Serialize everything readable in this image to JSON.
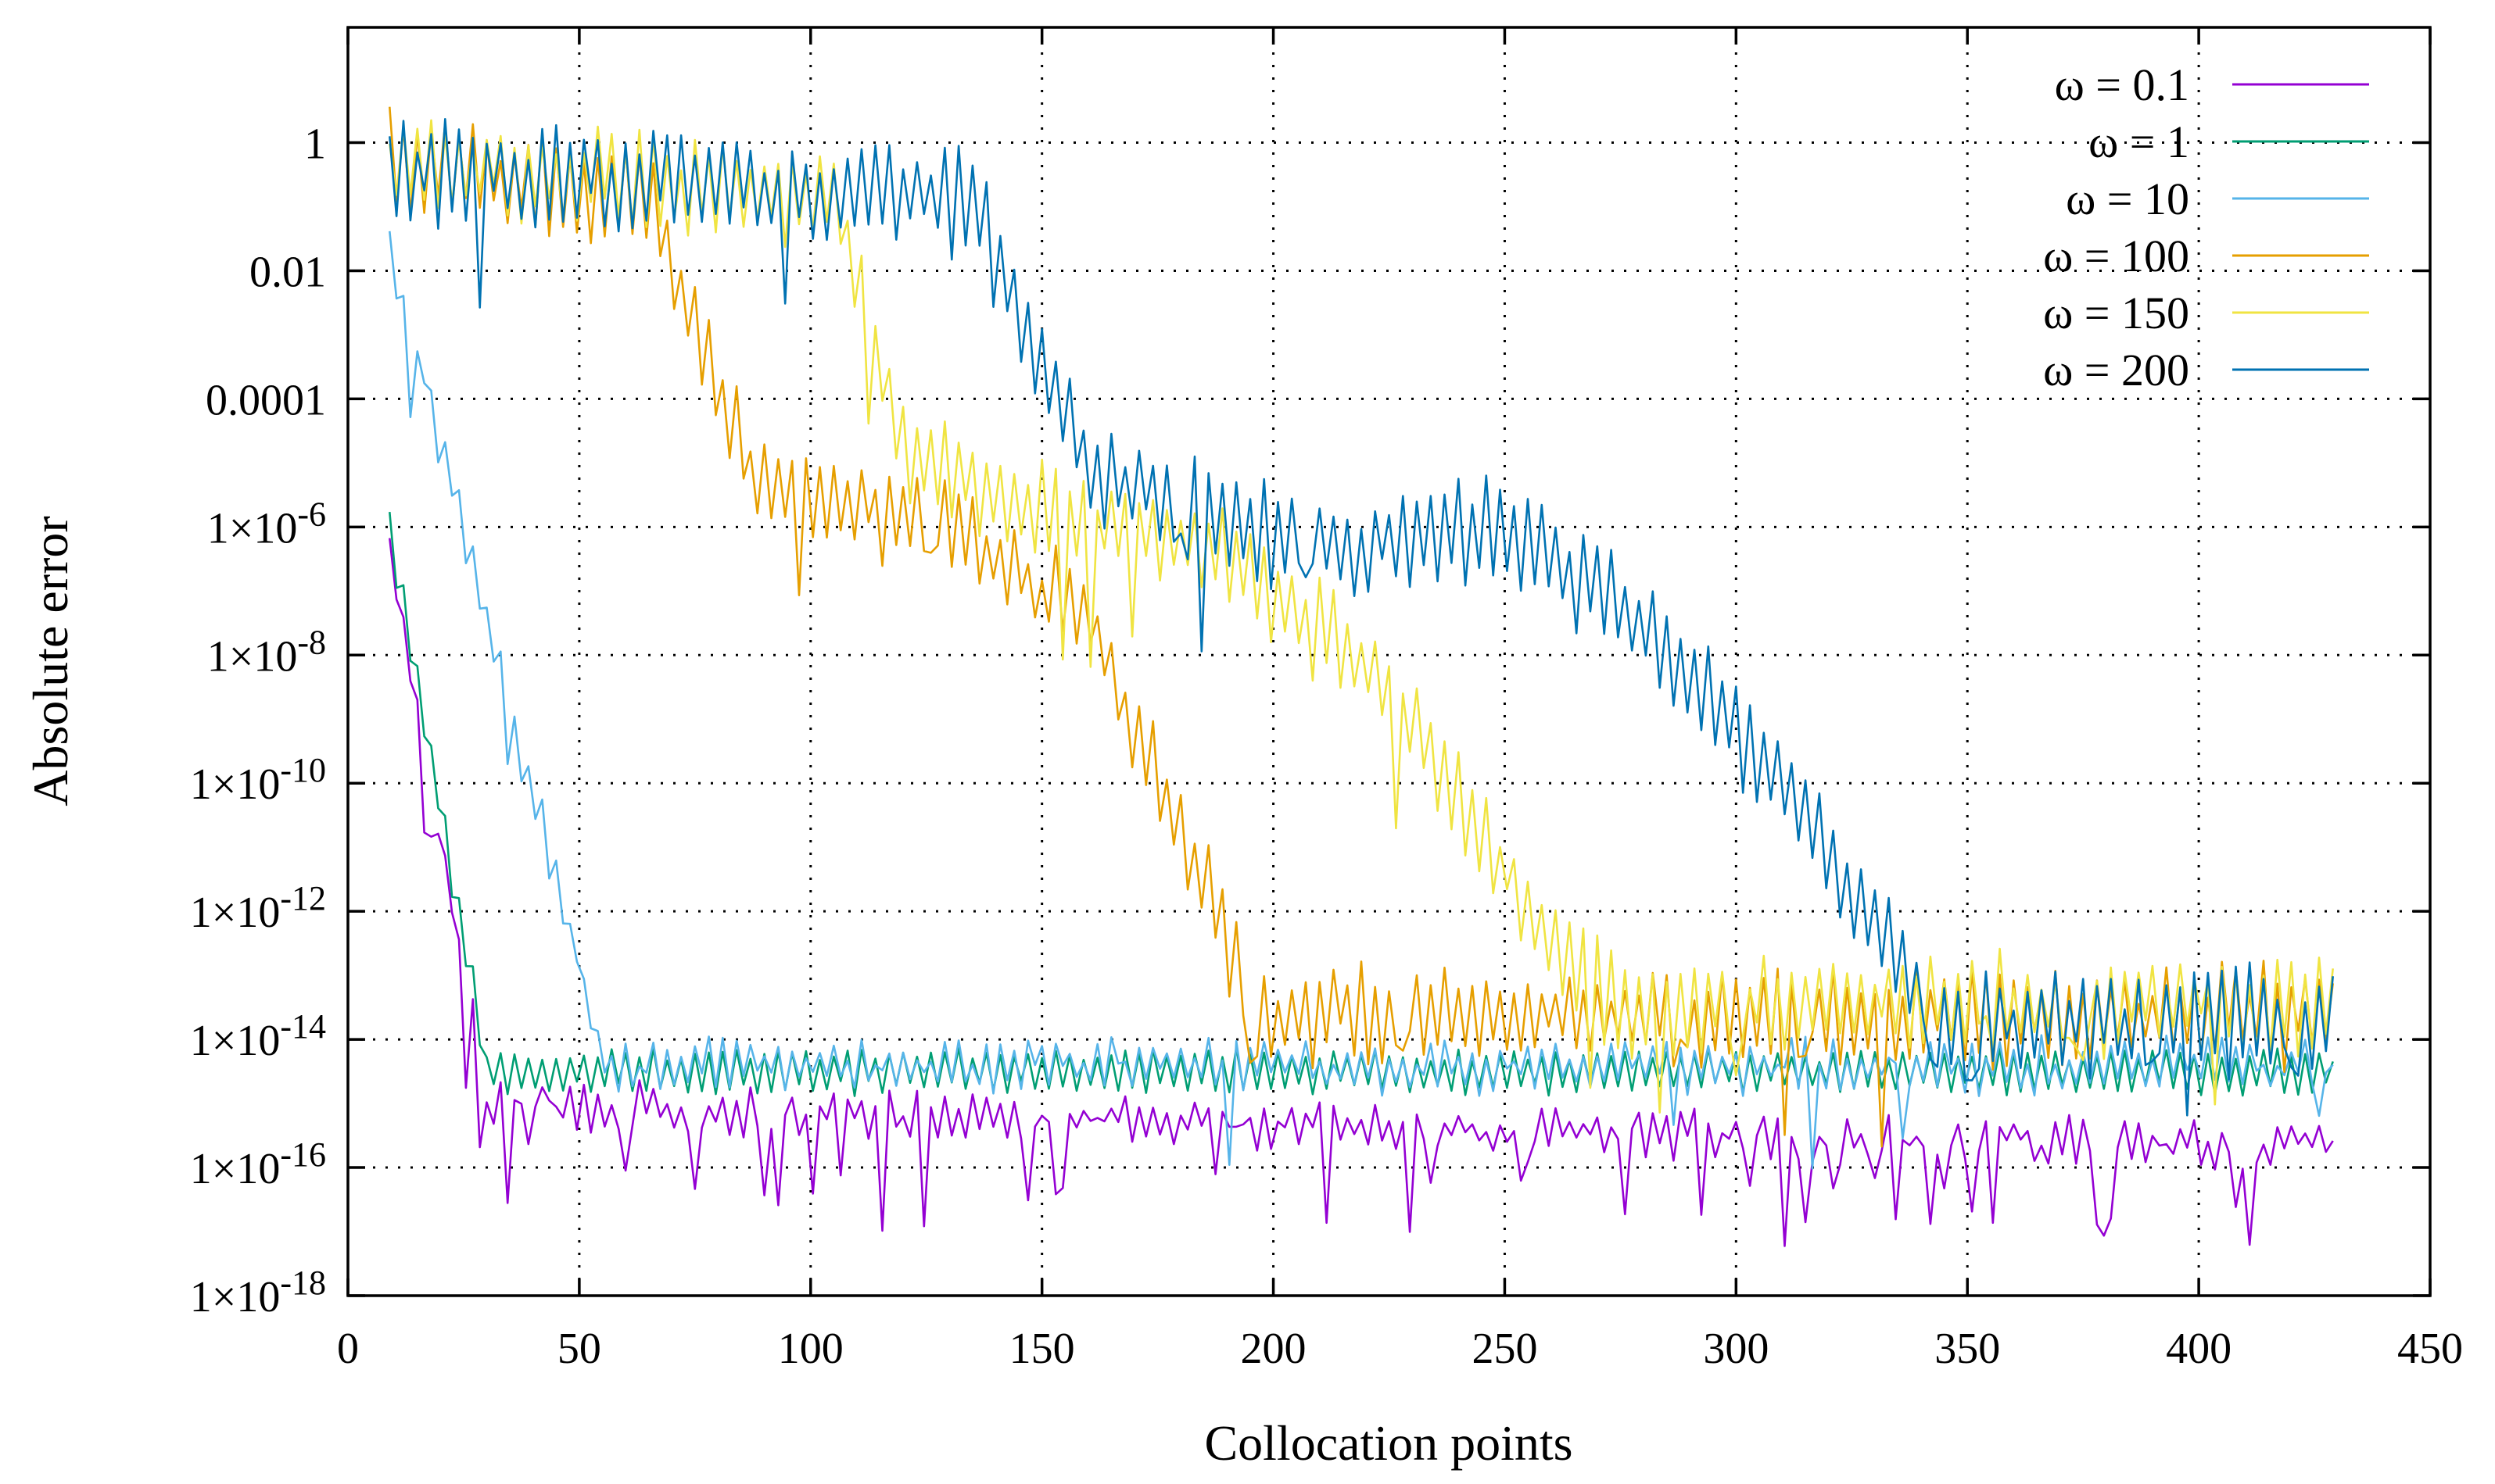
{
  "chart_data": {
    "type": "line",
    "title": "",
    "xlabel": "Collocation points",
    "ylabel": "Absolute error",
    "xlim": [
      0,
      450
    ],
    "ylim_log10": [
      -18,
      1.8
    ],
    "yscale": "log",
    "grid": true,
    "legend_position": "top-right",
    "x_ticks": [
      0,
      50,
      100,
      150,
      200,
      250,
      300,
      350,
      400,
      450
    ],
    "x_tick_labels": [
      "0",
      "50",
      "100",
      "150",
      "200",
      "250",
      "300",
      "350",
      "400",
      "450"
    ],
    "y_ticks": [
      {
        "log10": 0,
        "mant": "1",
        "exp": ""
      },
      {
        "log10": -2,
        "mant": "0.01",
        "exp": ""
      },
      {
        "log10": -4,
        "mant": "0.0001",
        "exp": ""
      },
      {
        "log10": -6,
        "mant": "1×10",
        "exp": "-6"
      },
      {
        "log10": -8,
        "mant": "1×10",
        "exp": "-8"
      },
      {
        "log10": -10,
        "mant": "1×10",
        "exp": "-10"
      },
      {
        "log10": -12,
        "mant": "1×10",
        "exp": "-12"
      },
      {
        "log10": -14,
        "mant": "1×10",
        "exp": "-14"
      },
      {
        "log10": -16,
        "mant": "1×10",
        "exp": "-16"
      },
      {
        "log10": -18,
        "mant": "1×10",
        "exp": "-18"
      }
    ],
    "x_start": 9,
    "x_end": 430,
    "noise_period": 1.5,
    "series": [
      {
        "name": "ω = 0.1",
        "color": "#9400d3",
        "points": [
          [
            9,
            -6.2
          ],
          [
            30,
            -15.0
          ],
          [
            430,
            -15.7
          ]
        ],
        "osc": 0.25,
        "noise": 0.45,
        "dips": 0.12
      },
      {
        "name": "ω = 1",
        "color": "#009e73",
        "points": [
          [
            9,
            -6.0
          ],
          [
            29,
            -14.0
          ],
          [
            30,
            -14.5
          ],
          [
            430,
            -14.5
          ]
        ],
        "osc": 0.35,
        "noise": 0.08,
        "dips": 0
      },
      {
        "name": "ω = 10",
        "color": "#56b4e9",
        "points": [
          [
            9,
            -1.7
          ],
          [
            54,
            -14.0
          ],
          [
            55,
            -14.4
          ],
          [
            430,
            -14.4
          ]
        ],
        "osc": 0.3,
        "noise": 0.4,
        "dips": 0.02
      },
      {
        "name": "ω = 100",
        "color": "#e69f00",
        "points": [
          [
            9,
            -0.3
          ],
          [
            65,
            -0.9
          ],
          [
            88,
            -5.4
          ],
          [
            100,
            -5.5
          ],
          [
            130,
            -6.0
          ],
          [
            160,
            -7.5
          ],
          [
            185,
            -11.5
          ],
          [
            195,
            -13.6
          ],
          [
            430,
            -13.6
          ]
        ],
        "osc": 0.7,
        "noise": 0.45,
        "dips": 0.03
      },
      {
        "name": "ω = 150",
        "color": "#f0e442",
        "points": [
          [
            9,
            -0.3
          ],
          [
            105,
            -0.9
          ],
          [
            120,
            -4.8
          ],
          [
            150,
            -5.8
          ],
          [
            190,
            -6.4
          ],
          [
            225,
            -8.5
          ],
          [
            260,
            -12.5
          ],
          [
            275,
            -13.5
          ],
          [
            430,
            -13.4
          ]
        ],
        "osc": 0.7,
        "noise": 0.4,
        "dips": 0.03
      },
      {
        "name": "ω = 200",
        "color": "#0072b2",
        "points": [
          [
            9,
            -0.4
          ],
          [
            135,
            -0.9
          ],
          [
            160,
            -5.1
          ],
          [
            200,
            -6.2
          ],
          [
            225,
            -6.3
          ],
          [
            250,
            -6.0
          ],
          [
            275,
            -7.2
          ],
          [
            310,
            -10.0
          ],
          [
            345,
            -13.8
          ],
          [
            430,
            -13.7
          ]
        ],
        "osc": 0.75,
        "noise": 0.45,
        "dips": 0.03
      }
    ]
  }
}
